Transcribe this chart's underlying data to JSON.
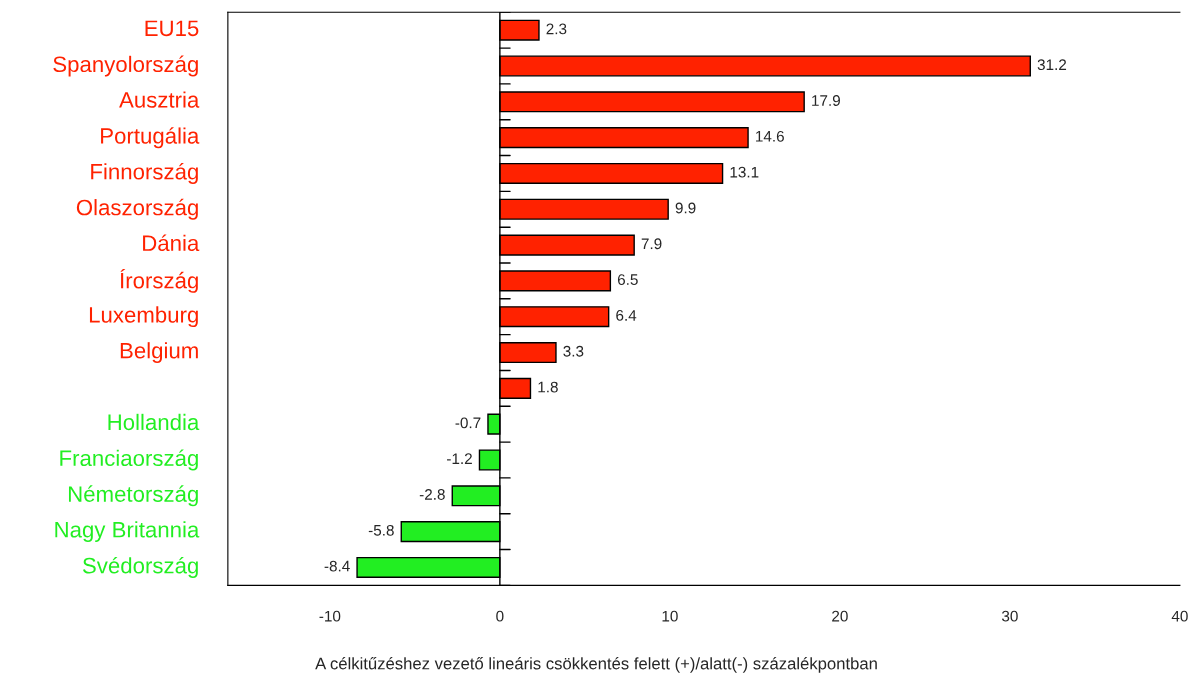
{
  "chart_data": {
    "type": "bar",
    "orientation": "horizontal",
    "xlabel": "A célkitűzéshez vezető lineáris csökkentés felett (+)/alatt(-) százalékpontban",
    "categories": [
      "EU15",
      "Spanyolország",
      "Ausztria",
      "Portugália",
      "Finnország",
      "Olaszország",
      "Dánia",
      "Írország",
      "Luxemburg",
      "Belgium",
      null,
      "Hollandia",
      "Franciaország",
      "Németország",
      "Nagy Britannia",
      "Svédország"
    ],
    "values": [
      2.3,
      31.2,
      17.9,
      14.6,
      13.1,
      9.9,
      7.9,
      6.5,
      6.4,
      3.3,
      1.8,
      -0.7,
      -1.2,
      -2.8,
      -5.8,
      -8.4
    ],
    "colors": [
      "#ff2200",
      "#ff2200",
      "#ff2200",
      "#ff2200",
      "#ff2200",
      "#ff2200",
      "#ff2200",
      "#ff2200",
      "#ff2200",
      "#ff2200",
      "#ff2200",
      "#22ee22",
      "#22ee22",
      "#22ee22",
      "#22ee22",
      "#22ee22"
    ],
    "xlim": [
      -16,
      40
    ],
    "xticks": [
      -10,
      0,
      10,
      20,
      30,
      40
    ],
    "ref_lines": [
      {
        "axis": "x",
        "value": 0,
        "color": "#000000"
      }
    ],
    "data_labels": true,
    "grid": false,
    "legend": false
  }
}
